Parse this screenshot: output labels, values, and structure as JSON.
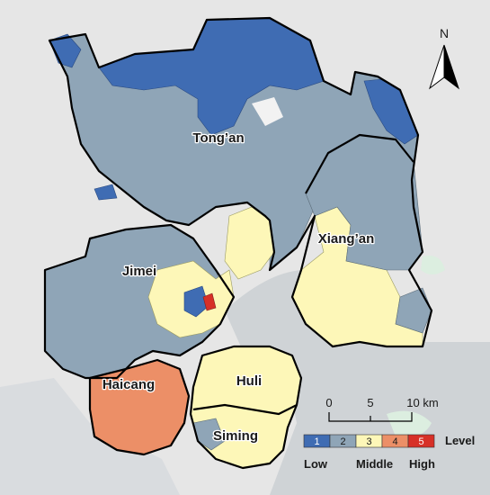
{
  "map": {
    "colors": {
      "background": "#e6e6e6",
      "water": "#cfd3d6",
      "green": "#dceee0",
      "level1": "#3f6cb3",
      "level2": "#8fa5b7",
      "level3": "#fdf7b8",
      "level4": "#ec8f67",
      "level5": "#d73027",
      "boundary": "#000000"
    },
    "districts": {
      "tongan": "Tong’an",
      "xiangan": "Xiang’an",
      "jimei": "Jimei",
      "haicang": "Haicang",
      "huli": "Huli",
      "siming": "Siming"
    },
    "north_arrow": {
      "label": "N",
      "icon": "north-arrow-icon"
    },
    "scale_bar": {
      "ticks": [
        "0",
        "5",
        "10 km"
      ]
    },
    "legend": {
      "levels": [
        {
          "value": "1",
          "color": "#3f6cb3"
        },
        {
          "value": "2",
          "color": "#8fa5b7"
        },
        {
          "value": "3",
          "color": "#fdf7b8"
        },
        {
          "value": "4",
          "color": "#ec8f67"
        },
        {
          "value": "5",
          "color": "#d73027"
        }
      ],
      "title": "Level",
      "low": "Low",
      "middle": "Middle",
      "high": "High"
    }
  }
}
